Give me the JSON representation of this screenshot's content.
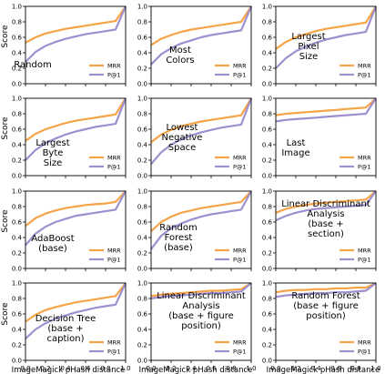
{
  "figure": {
    "ylabel": "Score",
    "xlabel": "ImageMagick pHash distance",
    "legend_labels": [
      "MRR",
      "P@1"
    ],
    "series_colors": {
      "MRR": "#f5a447",
      "P@1": "#9e90cf"
    },
    "ytick_labels": [
      "0.0",
      "0.2",
      "0.4",
      "0.6",
      "0.8",
      "1.0"
    ],
    "xtick_labels": [
      "0.0",
      "0.2",
      "0.4",
      "0.6",
      "0.8",
      "1.0"
    ],
    "legend_placement": "lower-right"
  },
  "chart_data": [
    {
      "type": "line",
      "title": [
        "Random"
      ],
      "xlim": [
        0,
        1
      ],
      "ylim": [
        0,
        1
      ],
      "series": [
        {
          "name": "MRR",
          "x": [
            0,
            0.1,
            0.2,
            0.3,
            0.4,
            0.5,
            0.6,
            0.7,
            0.8,
            0.9,
            1.0
          ],
          "y": [
            0.53,
            0.6,
            0.65,
            0.68,
            0.71,
            0.73,
            0.75,
            0.77,
            0.79,
            0.81,
            1.0
          ]
        },
        {
          "name": "P@1",
          "x": [
            0,
            0.1,
            0.2,
            0.3,
            0.4,
            0.5,
            0.6,
            0.7,
            0.8,
            0.9,
            1.0
          ],
          "y": [
            0.28,
            0.41,
            0.49,
            0.54,
            0.58,
            0.61,
            0.64,
            0.66,
            0.68,
            0.7,
            1.0
          ]
        }
      ]
    },
    {
      "type": "line",
      "title": [
        "Most",
        "Colors"
      ],
      "xlim": [
        0,
        1
      ],
      "ylim": [
        0,
        1
      ],
      "series": [
        {
          "name": "MRR",
          "x": [
            0,
            0.1,
            0.2,
            0.3,
            0.4,
            0.5,
            0.6,
            0.7,
            0.8,
            0.9,
            1.0
          ],
          "y": [
            0.5,
            0.58,
            0.63,
            0.67,
            0.7,
            0.72,
            0.74,
            0.76,
            0.78,
            0.8,
            1.0
          ]
        },
        {
          "name": "P@1",
          "x": [
            0,
            0.1,
            0.2,
            0.3,
            0.4,
            0.5,
            0.6,
            0.7,
            0.8,
            0.9,
            1.0
          ],
          "y": [
            0.25,
            0.38,
            0.46,
            0.52,
            0.56,
            0.6,
            0.63,
            0.65,
            0.67,
            0.69,
            1.0
          ]
        }
      ]
    },
    {
      "type": "line",
      "title": [
        "Largest",
        "Pixel",
        "Size"
      ],
      "xlim": [
        0,
        1
      ],
      "ylim": [
        0,
        1
      ],
      "series": [
        {
          "name": "MRR",
          "x": [
            0,
            0.1,
            0.2,
            0.3,
            0.4,
            0.5,
            0.6,
            0.7,
            0.8,
            0.9,
            1.0
          ],
          "y": [
            0.45,
            0.54,
            0.6,
            0.64,
            0.68,
            0.71,
            0.73,
            0.75,
            0.77,
            0.79,
            1.0
          ]
        },
        {
          "name": "P@1",
          "x": [
            0,
            0.1,
            0.2,
            0.3,
            0.4,
            0.5,
            0.6,
            0.7,
            0.8,
            0.9,
            1.0
          ],
          "y": [
            0.2,
            0.33,
            0.42,
            0.48,
            0.53,
            0.57,
            0.6,
            0.63,
            0.65,
            0.67,
            1.0
          ]
        }
      ]
    },
    {
      "type": "line",
      "title": [
        "Largest",
        "Byte",
        "Size"
      ],
      "xlim": [
        0,
        1
      ],
      "ylim": [
        0,
        1
      ],
      "series": [
        {
          "name": "MRR",
          "x": [
            0,
            0.1,
            0.2,
            0.3,
            0.4,
            0.5,
            0.6,
            0.7,
            0.8,
            0.9,
            1.0
          ],
          "y": [
            0.45,
            0.54,
            0.6,
            0.64,
            0.68,
            0.71,
            0.73,
            0.75,
            0.77,
            0.79,
            1.0
          ]
        },
        {
          "name": "P@1",
          "x": [
            0,
            0.1,
            0.2,
            0.3,
            0.4,
            0.5,
            0.6,
            0.7,
            0.8,
            0.9,
            1.0
          ],
          "y": [
            0.2,
            0.33,
            0.42,
            0.48,
            0.53,
            0.57,
            0.6,
            0.63,
            0.65,
            0.67,
            1.0
          ]
        }
      ]
    },
    {
      "type": "line",
      "title": [
        "Lowest",
        "Negative",
        "Space"
      ],
      "xlim": [
        0,
        1
      ],
      "ylim": [
        0,
        1
      ],
      "series": [
        {
          "name": "MRR",
          "x": [
            0,
            0.1,
            0.2,
            0.3,
            0.4,
            0.5,
            0.6,
            0.7,
            0.8,
            0.9,
            1.0
          ],
          "y": [
            0.43,
            0.53,
            0.59,
            0.64,
            0.67,
            0.7,
            0.72,
            0.74,
            0.76,
            0.78,
            1.0
          ]
        },
        {
          "name": "P@1",
          "x": [
            0,
            0.1,
            0.2,
            0.3,
            0.4,
            0.5,
            0.6,
            0.7,
            0.8,
            0.9,
            1.0
          ],
          "y": [
            0.15,
            0.3,
            0.4,
            0.47,
            0.52,
            0.56,
            0.59,
            0.62,
            0.64,
            0.66,
            1.0
          ]
        }
      ]
    },
    {
      "type": "line",
      "title": [
        "Last",
        "Image"
      ],
      "xlim": [
        0,
        1
      ],
      "ylim": [
        0,
        1
      ],
      "series": [
        {
          "name": "MRR",
          "x": [
            0,
            0.1,
            0.2,
            0.3,
            0.4,
            0.5,
            0.6,
            0.7,
            0.8,
            0.9,
            1.0
          ],
          "y": [
            0.78,
            0.8,
            0.81,
            0.82,
            0.83,
            0.84,
            0.85,
            0.86,
            0.87,
            0.88,
            1.0
          ]
        },
        {
          "name": "P@1",
          "x": [
            0,
            0.1,
            0.2,
            0.3,
            0.4,
            0.5,
            0.6,
            0.7,
            0.8,
            0.9,
            1.0
          ],
          "y": [
            0.7,
            0.72,
            0.73,
            0.74,
            0.75,
            0.76,
            0.77,
            0.78,
            0.79,
            0.8,
            1.0
          ]
        }
      ]
    },
    {
      "type": "line",
      "title": [
        "AdaBoost",
        "(base)"
      ],
      "xlim": [
        0,
        1
      ],
      "ylim": [
        0,
        1
      ],
      "series": [
        {
          "name": "MRR",
          "x": [
            0,
            0.1,
            0.2,
            0.3,
            0.4,
            0.5,
            0.6,
            0.7,
            0.8,
            0.9,
            1.0
          ],
          "y": [
            0.55,
            0.65,
            0.71,
            0.75,
            0.78,
            0.8,
            0.82,
            0.83,
            0.84,
            0.86,
            1.0
          ]
        },
        {
          "name": "P@1",
          "x": [
            0,
            0.1,
            0.2,
            0.3,
            0.4,
            0.5,
            0.6,
            0.7,
            0.8,
            0.9,
            1.0
          ],
          "y": [
            0.3,
            0.45,
            0.54,
            0.6,
            0.64,
            0.68,
            0.7,
            0.72,
            0.74,
            0.76,
            1.0
          ]
        }
      ]
    },
    {
      "type": "line",
      "title": [
        "Random",
        "Forest",
        "(base)"
      ],
      "xlim": [
        0,
        1
      ],
      "ylim": [
        0,
        1
      ],
      "series": [
        {
          "name": "MRR",
          "x": [
            0,
            0.1,
            0.2,
            0.3,
            0.4,
            0.5,
            0.6,
            0.7,
            0.8,
            0.9,
            1.0
          ],
          "y": [
            0.48,
            0.6,
            0.67,
            0.72,
            0.75,
            0.78,
            0.8,
            0.82,
            0.84,
            0.86,
            1.0
          ]
        },
        {
          "name": "P@1",
          "x": [
            0,
            0.1,
            0.2,
            0.3,
            0.4,
            0.5,
            0.6,
            0.7,
            0.8,
            0.9,
            1.0
          ],
          "y": [
            0.25,
            0.42,
            0.52,
            0.58,
            0.63,
            0.67,
            0.7,
            0.72,
            0.74,
            0.76,
            1.0
          ]
        }
      ]
    },
    {
      "type": "line",
      "title": [
        "Linear Discriminant",
        "Analysis",
        "(base +",
        "section)"
      ],
      "xlim": [
        0,
        1
      ],
      "ylim": [
        0,
        1
      ],
      "series": [
        {
          "name": "MRR",
          "x": [
            0,
            0.1,
            0.2,
            0.3,
            0.4,
            0.5,
            0.6,
            0.7,
            0.8,
            0.9,
            1.0
          ],
          "y": [
            0.72,
            0.77,
            0.8,
            0.82,
            0.84,
            0.85,
            0.86,
            0.87,
            0.88,
            0.89,
            1.0
          ]
        },
        {
          "name": "P@1",
          "x": [
            0,
            0.1,
            0.2,
            0.3,
            0.4,
            0.5,
            0.6,
            0.7,
            0.8,
            0.9,
            1.0
          ],
          "y": [
            0.62,
            0.68,
            0.72,
            0.75,
            0.77,
            0.78,
            0.79,
            0.8,
            0.81,
            0.82,
            1.0
          ]
        }
      ]
    },
    {
      "type": "line",
      "title": [
        "Decision Tree",
        "(base +",
        "caption)"
      ],
      "xlim": [
        0,
        1
      ],
      "ylim": [
        0,
        1
      ],
      "series": [
        {
          "name": "MRR",
          "x": [
            0,
            0.1,
            0.2,
            0.3,
            0.4,
            0.5,
            0.6,
            0.7,
            0.8,
            0.9,
            1.0
          ],
          "y": [
            0.5,
            0.59,
            0.65,
            0.69,
            0.72,
            0.75,
            0.77,
            0.79,
            0.81,
            0.83,
            1.0
          ]
        },
        {
          "name": "P@1",
          "x": [
            0,
            0.1,
            0.2,
            0.3,
            0.4,
            0.5,
            0.6,
            0.7,
            0.8,
            0.9,
            1.0
          ],
          "y": [
            0.28,
            0.4,
            0.48,
            0.54,
            0.58,
            0.62,
            0.65,
            0.68,
            0.7,
            0.72,
            1.0
          ]
        }
      ]
    },
    {
      "type": "line",
      "title": [
        "Linear Discriminant",
        "Analysis",
        "(base + figure",
        "position)"
      ],
      "xlim": [
        0,
        1
      ],
      "ylim": [
        0,
        1
      ],
      "series": [
        {
          "name": "MRR",
          "x": [
            0,
            0.1,
            0.2,
            0.3,
            0.4,
            0.5,
            0.6,
            0.7,
            0.8,
            0.9,
            1.0
          ],
          "y": [
            0.83,
            0.85,
            0.86,
            0.87,
            0.88,
            0.89,
            0.9,
            0.9,
            0.91,
            0.92,
            1.0
          ]
        },
        {
          "name": "P@1",
          "x": [
            0,
            0.1,
            0.2,
            0.3,
            0.4,
            0.5,
            0.6,
            0.7,
            0.8,
            0.9,
            1.0
          ],
          "y": [
            0.8,
            0.82,
            0.83,
            0.84,
            0.85,
            0.86,
            0.87,
            0.87,
            0.88,
            0.89,
            1.0
          ]
        }
      ]
    },
    {
      "type": "line",
      "title": [
        "Random Forest",
        "(base + figure",
        "position)"
      ],
      "xlim": [
        0,
        1
      ],
      "ylim": [
        0,
        1
      ],
      "series": [
        {
          "name": "MRR",
          "x": [
            0,
            0.1,
            0.2,
            0.3,
            0.4,
            0.5,
            0.6,
            0.7,
            0.8,
            0.9,
            1.0
          ],
          "y": [
            0.88,
            0.9,
            0.91,
            0.91,
            0.92,
            0.92,
            0.93,
            0.93,
            0.94,
            0.94,
            1.0
          ]
        },
        {
          "name": "P@1",
          "x": [
            0,
            0.1,
            0.2,
            0.3,
            0.4,
            0.5,
            0.6,
            0.7,
            0.8,
            0.9,
            1.0
          ],
          "y": [
            0.82,
            0.84,
            0.85,
            0.86,
            0.87,
            0.87,
            0.88,
            0.88,
            0.89,
            0.9,
            1.0
          ]
        }
      ]
    }
  ]
}
